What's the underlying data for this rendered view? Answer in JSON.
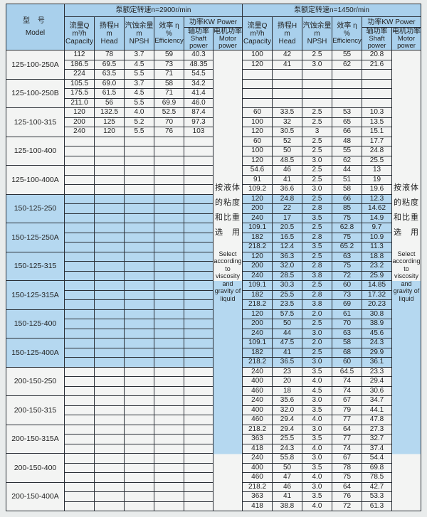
{
  "header": {
    "model_zh": "型 号",
    "model_en": "Model",
    "speed1": "泵额定转速n=2900r/min",
    "speed2": "泵额定转速n=1450r/min",
    "capacity_zh": "流量Q",
    "capacity_unit": "m³/h",
    "capacity_en": "Capacity",
    "head_zh": "扬程H",
    "head_unit": "m",
    "head_en": "Head",
    "npsh_zh": "汽蚀余量",
    "npsh_unit": "m",
    "npsh_en": "NPSH",
    "eff_zh": "效率 η",
    "eff_unit": "%",
    "eff_en": "Efficiency",
    "power": "功率KW Power",
    "shaft_zh": "轴功率",
    "shaft_en": "Shaft power",
    "motor_zh": "电机功率",
    "motor_en": "Motor power"
  },
  "note": {
    "zh": [
      "按液体",
      "的粘度",
      "和比重",
      "选　用"
    ],
    "en": "Select according to viscosity and gravity of liquid"
  },
  "colors": {
    "header": "#a9d0ec",
    "highlight_rows": "#b5d8f0",
    "rows": "#f3f4f3"
  },
  "models": [
    {
      "name": "125-100-250A",
      "blue": false,
      "n2900": [
        [
          "112",
          "78",
          "3.7",
          "59",
          "40.3"
        ],
        [
          "186.5",
          "69.5",
          "4.5",
          "73",
          "48.35"
        ],
        [
          "224",
          "63.5",
          "5.5",
          "71",
          "54.5"
        ]
      ],
      "n1450": [
        [
          "100",
          "42",
          "2.5",
          "55",
          "20.8"
        ],
        [
          "120",
          "41",
          "3.0",
          "62",
          "21.6"
        ],
        [
          "",
          "",
          "",
          "",
          ""
        ]
      ]
    },
    {
      "name": "125-100-250B",
      "blue": false,
      "n2900": [
        [
          "105.5",
          "69.0",
          "3.7",
          "58",
          "34.2"
        ],
        [
          "175.5",
          "61.5",
          "4.5",
          "71",
          "41.4"
        ],
        [
          "211.0",
          "56",
          "5.5",
          "69.9",
          "46.0"
        ]
      ],
      "n1450": [
        [
          "",
          "",
          "",
          "",
          ""
        ],
        [
          "",
          "",
          "",
          "",
          ""
        ],
        [
          "",
          "",
          "",
          "",
          ""
        ]
      ]
    },
    {
      "name": "125-100-315",
      "blue": false,
      "n2900": [
        [
          "120",
          "132.5",
          "4.0",
          "52.5",
          "87.4"
        ],
        [
          "200",
          "125",
          "5.2",
          "70",
          "97.3"
        ],
        [
          "240",
          "120",
          "5.5",
          "76",
          "103"
        ]
      ],
      "n1450": [
        [
          "60",
          "33.5",
          "2.5",
          "53",
          "10.3"
        ],
        [
          "100",
          "32",
          "2.5",
          "65",
          "13.5"
        ],
        [
          "120",
          "30.5",
          "3",
          "66",
          "15.1"
        ]
      ]
    },
    {
      "name": "125-100-400",
      "blue": false,
      "n2900": [],
      "n1450": [
        [
          "60",
          "52",
          "2.5",
          "48",
          "17.7"
        ],
        [
          "100",
          "50",
          "2.5",
          "55",
          "24.8"
        ],
        [
          "120",
          "48.5",
          "3.0",
          "62",
          "25.5"
        ]
      ]
    },
    {
      "name": "125-100-400A",
      "blue": false,
      "n2900": [],
      "n1450": [
        [
          "54.6",
          "46",
          "2.5",
          "44",
          "13"
        ],
        [
          "91",
          "41",
          "2.5",
          "51",
          "19"
        ],
        [
          "109.2",
          "36.6",
          "3.0",
          "58",
          "19.6"
        ]
      ]
    },
    {
      "name": "150-125-250",
      "blue": true,
      "n2900": [],
      "n1450": [
        [
          "120",
          "24.8",
          "2.5",
          "66",
          "12.3"
        ],
        [
          "200",
          "22",
          "2.8",
          "85",
          "14.62"
        ],
        [
          "240",
          "17",
          "3.5",
          "75",
          "14.9"
        ]
      ]
    },
    {
      "name": "150-125-250A",
      "blue": true,
      "n2900": [],
      "n1450": [
        [
          "109.1",
          "20.5",
          "2.5",
          "62.8",
          "9.7"
        ],
        [
          "182",
          "16.5",
          "2.8",
          "75",
          "10.9"
        ],
        [
          "218.2",
          "12.4",
          "3.5",
          "65.2",
          "11.3"
        ]
      ]
    },
    {
      "name": "150-125-315",
      "blue": true,
      "n2900": [],
      "n1450": [
        [
          "120",
          "36.3",
          "2.5",
          "63",
          "18.8"
        ],
        [
          "200",
          "32.0",
          "2.8",
          "75",
          "23.2"
        ],
        [
          "240",
          "28.5",
          "3.8",
          "72",
          "25.9"
        ]
      ]
    },
    {
      "name": "150-125-315A",
      "blue": true,
      "n2900": [],
      "n1450": [
        [
          "109.1",
          "30.3",
          "2.5",
          "60",
          "14.85"
        ],
        [
          "182",
          "25.5",
          "2.8",
          "73",
          "17.32"
        ],
        [
          "218.2",
          "23.5",
          "3.8",
          "69",
          "20.23"
        ]
      ]
    },
    {
      "name": "150-125-400",
      "blue": true,
      "n2900": [],
      "n1450": [
        [
          "120",
          "57.5",
          "2.0",
          "61",
          "30.8"
        ],
        [
          "200",
          "50",
          "2.5",
          "70",
          "38.9"
        ],
        [
          "240",
          "44",
          "3.0",
          "63",
          "45.6"
        ]
      ]
    },
    {
      "name": "150-125-400A",
      "blue": true,
      "n2900": [],
      "n1450": [
        [
          "109.1",
          "47.5",
          "2.0",
          "58",
          "24.3"
        ],
        [
          "182",
          "41",
          "2.5",
          "68",
          "29.9"
        ],
        [
          "218.2",
          "36.5",
          "3.0",
          "60",
          "36.1"
        ]
      ]
    },
    {
      "name": "200-150-250",
      "blue": false,
      "n2900": [],
      "n1450": [
        [
          "240",
          "23",
          "3.5",
          "64.5",
          "23.3"
        ],
        [
          "400",
          "20",
          "4.0",
          "74",
          "29.4"
        ],
        [
          "460",
          "18",
          "4.5",
          "74",
          "30.6"
        ]
      ]
    },
    {
      "name": "200-150-315",
      "blue": false,
      "n2900": [],
      "n1450": [
        [
          "240",
          "35.6",
          "3.0",
          "67",
          "34.7"
        ],
        [
          "400",
          "32.0",
          "3.5",
          "79",
          "44.1"
        ],
        [
          "460",
          "29.4",
          "4.0",
          "77",
          "47.8"
        ]
      ]
    },
    {
      "name": "200-150-315A",
      "blue": false,
      "n2900": [],
      "n1450": [
        [
          "218.2",
          "29.4",
          "3.0",
          "64",
          "27.3"
        ],
        [
          "363",
          "25.5",
          "3.5",
          "77",
          "32.7"
        ],
        [
          "418",
          "24.3",
          "4.0",
          "74",
          "37.4"
        ]
      ]
    },
    {
      "name": "200-150-400",
      "blue": false,
      "n2900": [],
      "n1450": [
        [
          "240",
          "55.8",
          "3.0",
          "67",
          "54.4"
        ],
        [
          "400",
          "50",
          "3.5",
          "78",
          "69.8"
        ],
        [
          "460",
          "47",
          "4.0",
          "75",
          "78.5"
        ]
      ]
    },
    {
      "name": "200-150-400A",
      "blue": false,
      "n2900": [],
      "n1450": [
        [
          "218.2",
          "46",
          "3.0",
          "64",
          "42.7"
        ],
        [
          "363",
          "41",
          "3.5",
          "76",
          "53.3"
        ],
        [
          "418",
          "38.8",
          "4.0",
          "72",
          "61.3"
        ]
      ]
    }
  ]
}
